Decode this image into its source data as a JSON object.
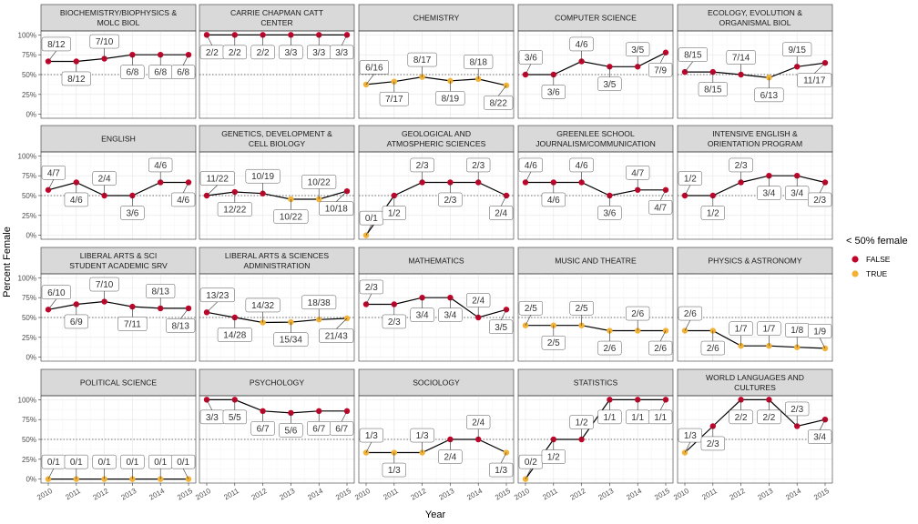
{
  "chart_data": {
    "type": "line",
    "xlabel": "Year",
    "ylabel": "Percent Female",
    "x": [
      2010,
      2011,
      2012,
      2013,
      2014,
      2015
    ],
    "x_tick_labels": [
      "2010",
      "2011",
      "2012",
      "2013",
      "2014",
      "2015"
    ],
    "ylim": [
      0,
      1
    ],
    "y_ticks": [
      0,
      0.25,
      0.5,
      0.75,
      1
    ],
    "y_tick_labels": [
      "0%",
      "25%",
      "50%",
      "75%",
      "100%"
    ],
    "reference_line": 0.5,
    "grid": true,
    "legend": {
      "title": "< 50% female",
      "placement": "right",
      "entries": [
        {
          "label": "FALSE",
          "color": "#c0052a"
        },
        {
          "label": "TRUE",
          "color": "#f2b236"
        }
      ]
    },
    "facets": [
      {
        "title": "BIOCHEMISTRY/BIOPHYSICS &\nMOLC BIOL",
        "labels": [
          "8/12",
          "8/12",
          "7/10",
          "6/8",
          "6/8",
          "6/8"
        ],
        "values": [
          0.6667,
          0.6667,
          0.7,
          0.75,
          0.75,
          0.75
        ],
        "below_50": [
          false,
          false,
          false,
          false,
          false,
          false
        ]
      },
      {
        "title": "CARRIE CHAPMAN CATT\nCENTER",
        "labels": [
          "2/2",
          "2/2",
          "2/2",
          "3/3",
          "3/3",
          "3/3"
        ],
        "values": [
          1,
          1,
          1,
          1,
          1,
          1
        ],
        "below_50": [
          false,
          false,
          false,
          false,
          false,
          false
        ]
      },
      {
        "title": "CHEMISTRY",
        "labels": [
          "6/16",
          "7/17",
          "8/17",
          "8/19",
          "8/18",
          "8/22"
        ],
        "values": [
          0.375,
          0.4118,
          0.4706,
          0.4211,
          0.4444,
          0.3636
        ],
        "below_50": [
          true,
          true,
          true,
          true,
          true,
          true
        ]
      },
      {
        "title": "COMPUTER SCIENCE",
        "labels": [
          "3/6",
          "3/6",
          "4/6",
          "3/5",
          "3/5",
          "7/9"
        ],
        "values": [
          0.5,
          0.5,
          0.6667,
          0.6,
          0.6,
          0.7778
        ],
        "below_50": [
          false,
          false,
          false,
          false,
          false,
          false
        ]
      },
      {
        "title": "ECOLOGY, EVOLUTION &\nORGANISMAL BIOL",
        "labels": [
          "8/15",
          "8/15",
          "7/14",
          "6/13",
          "9/15",
          "11/17"
        ],
        "values": [
          0.5333,
          0.5333,
          0.5,
          0.4615,
          0.6,
          0.6471
        ],
        "below_50": [
          false,
          false,
          false,
          true,
          false,
          false
        ]
      },
      {
        "title": "ENGLISH",
        "labels": [
          "4/7",
          "4/6",
          "2/4",
          "3/6",
          "4/6",
          "4/6"
        ],
        "values": [
          0.5714,
          0.6667,
          0.5,
          0.5,
          0.6667,
          0.6667
        ],
        "below_50": [
          false,
          false,
          false,
          false,
          false,
          false
        ]
      },
      {
        "title": "GENETICS, DEVELOPMENT &\nCELL BIOLOGY",
        "labels": [
          "11/22",
          "12/22",
          "10/19",
          "10/22",
          "10/22",
          "10/18"
        ],
        "values": [
          0.5,
          0.5455,
          0.5263,
          0.4545,
          0.4545,
          0.5556
        ],
        "below_50": [
          false,
          false,
          false,
          true,
          true,
          false
        ]
      },
      {
        "title": "GEOLOGICAL AND\nATMOSPHERIC SCIENCES",
        "labels": [
          "0/1",
          "1/2",
          "2/3",
          "2/3",
          "2/3",
          "2/4"
        ],
        "values": [
          0,
          0.5,
          0.6667,
          0.6667,
          0.6667,
          0.5
        ],
        "below_50": [
          true,
          false,
          false,
          false,
          false,
          false
        ]
      },
      {
        "title": "GREENLEE SCHOOL\nJOURNALISM/COMMUNICATION",
        "labels": [
          "4/6",
          "4/6",
          "4/6",
          "3/6",
          "4/7",
          "4/7"
        ],
        "values": [
          0.6667,
          0.6667,
          0.6667,
          0.5,
          0.5714,
          0.5714
        ],
        "below_50": [
          false,
          false,
          false,
          false,
          false,
          false
        ]
      },
      {
        "title": "INTENSIVE ENGLISH &\nORIENTATION PROGRAM",
        "labels": [
          "1/2",
          "1/2",
          "2/3",
          "3/4",
          "3/4",
          "2/3"
        ],
        "values": [
          0.5,
          0.5,
          0.6667,
          0.75,
          0.75,
          0.6667
        ],
        "below_50": [
          false,
          false,
          false,
          false,
          false,
          false
        ]
      },
      {
        "title": "LIBERAL ARTS & SCI\nSTUDENT ACADEMIC SRV",
        "labels": [
          "6/10",
          "6/9",
          "7/10",
          "7/11",
          "8/13",
          "8/13"
        ],
        "values": [
          0.6,
          0.6667,
          0.7,
          0.6364,
          0.6154,
          0.6154
        ],
        "below_50": [
          false,
          false,
          false,
          false,
          false,
          false
        ]
      },
      {
        "title": "LIBERAL ARTS & SCIENCES\nADMINISTRATION",
        "labels": [
          "13/23",
          "14/28",
          "14/32",
          "15/34",
          "18/38",
          "21/43"
        ],
        "values": [
          0.5652,
          0.5,
          0.4375,
          0.4412,
          0.4737,
          0.4884
        ],
        "below_50": [
          false,
          false,
          true,
          true,
          true,
          true
        ]
      },
      {
        "title": "MATHEMATICS",
        "labels": [
          "2/3",
          "2/3",
          "3/4",
          "3/4",
          "2/4",
          "3/5"
        ],
        "values": [
          0.6667,
          0.6667,
          0.75,
          0.75,
          0.5,
          0.6
        ],
        "below_50": [
          false,
          false,
          false,
          false,
          false,
          false
        ]
      },
      {
        "title": "MUSIC AND THEATRE",
        "labels": [
          "2/5",
          "2/5",
          "2/5",
          "2/6",
          "2/6",
          "2/6"
        ],
        "values": [
          0.4,
          0.4,
          0.4,
          0.3333,
          0.3333,
          0.3333
        ],
        "below_50": [
          true,
          true,
          true,
          true,
          true,
          true
        ]
      },
      {
        "title": "PHYSICS & ASTRONOMY",
        "labels": [
          "2/6",
          "2/6",
          "1/7",
          "1/7",
          "1/8",
          "1/9"
        ],
        "values": [
          0.3333,
          0.3333,
          0.1429,
          0.1429,
          0.125,
          0.1111
        ],
        "below_50": [
          true,
          true,
          true,
          true,
          true,
          true
        ]
      },
      {
        "title": "POLITICAL SCIENCE",
        "labels": [
          "0/1",
          "0/1",
          "0/1",
          "0/1",
          "0/1",
          "0/1"
        ],
        "values": [
          0,
          0,
          0,
          0,
          0,
          0
        ],
        "below_50": [
          true,
          true,
          true,
          true,
          true,
          true
        ]
      },
      {
        "title": "PSYCHOLOGY",
        "labels": [
          "3/3",
          "5/5",
          "6/7",
          "5/6",
          "6/7",
          "6/7"
        ],
        "values": [
          1,
          1,
          0.8571,
          0.8333,
          0.8571,
          0.8571
        ],
        "below_50": [
          false,
          false,
          false,
          false,
          false,
          false
        ]
      },
      {
        "title": "SOCIOLOGY",
        "labels": [
          "1/3",
          "1/3",
          "1/3",
          "2/4",
          "2/4",
          "1/3"
        ],
        "values": [
          0.3333,
          0.3333,
          0.3333,
          0.5,
          0.5,
          0.3333
        ],
        "below_50": [
          true,
          true,
          true,
          false,
          false,
          true
        ]
      },
      {
        "title": "STATISTICS",
        "labels": [
          "0/2",
          "1/2",
          "1/2",
          "1/1",
          "1/1",
          "1/1"
        ],
        "values": [
          0,
          0.5,
          0.5,
          1,
          1,
          1
        ],
        "below_50": [
          true,
          false,
          false,
          false,
          false,
          false
        ]
      },
      {
        "title": "WORLD LANGUAGES AND\nCULTURES",
        "labels": [
          "1/3",
          "2/3",
          "2/2",
          "2/2",
          "2/3",
          "3/4"
        ],
        "values": [
          0.3333,
          0.6667,
          1,
          1,
          0.6667,
          0.75
        ],
        "below_50": [
          true,
          false,
          false,
          false,
          false,
          false
        ]
      }
    ]
  }
}
